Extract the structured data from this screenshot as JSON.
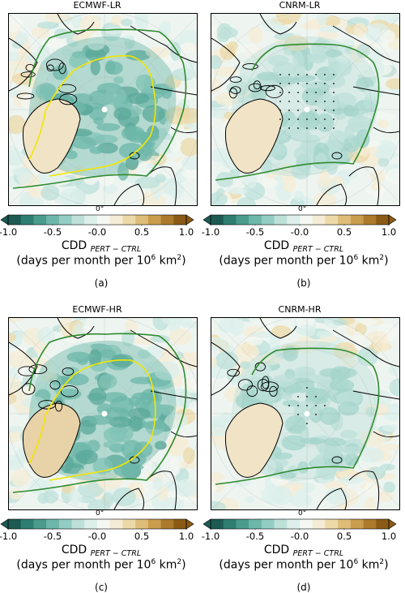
{
  "panels": [
    {
      "title": "ECMWF-LR",
      "letter": "(a)",
      "stipple": false,
      "yellow": true
    },
    {
      "title": "CNRM-LR",
      "letter": "(b)",
      "stipple": true,
      "yellow": false
    },
    {
      "title": "ECMWF-HR",
      "letter": "(c)",
      "stipple": false,
      "yellow": true
    },
    {
      "title": "CNRM-HR",
      "letter": "(d)",
      "stipple": true,
      "yellow": false
    }
  ],
  "lon_label": "0°",
  "colorbar": {
    "ticks": [
      "-1.0",
      "-0.5",
      "-0.0",
      "0.5",
      "1.0"
    ],
    "tick_values": [
      -1.0,
      -0.5,
      0.0,
      0.5,
      1.0
    ],
    "range": [
      -1.0,
      1.0
    ],
    "colors": [
      "#1d5b52",
      "#2e7e72",
      "#4a9b8c",
      "#6cb7a9",
      "#93ccc2",
      "#bde0d9",
      "#dcefeb",
      "#f4f7f2",
      "#f5ecd5",
      "#ecd9a8",
      "#ddbd78",
      "#c99d4d",
      "#ac7a2c",
      "#8a5a16"
    ]
  },
  "cbar_label": "CDD",
  "cbar_sub": "PERT − CTRL",
  "units_prefix": "(days per month per 10",
  "units_exp": "6",
  "units_suffix": " km",
  "units_exp2": "2",
  "units_close": ")",
  "line_colors": {
    "green": "#2e8b2e",
    "yellow": "#f2e600",
    "coast": "#000000"
  }
}
